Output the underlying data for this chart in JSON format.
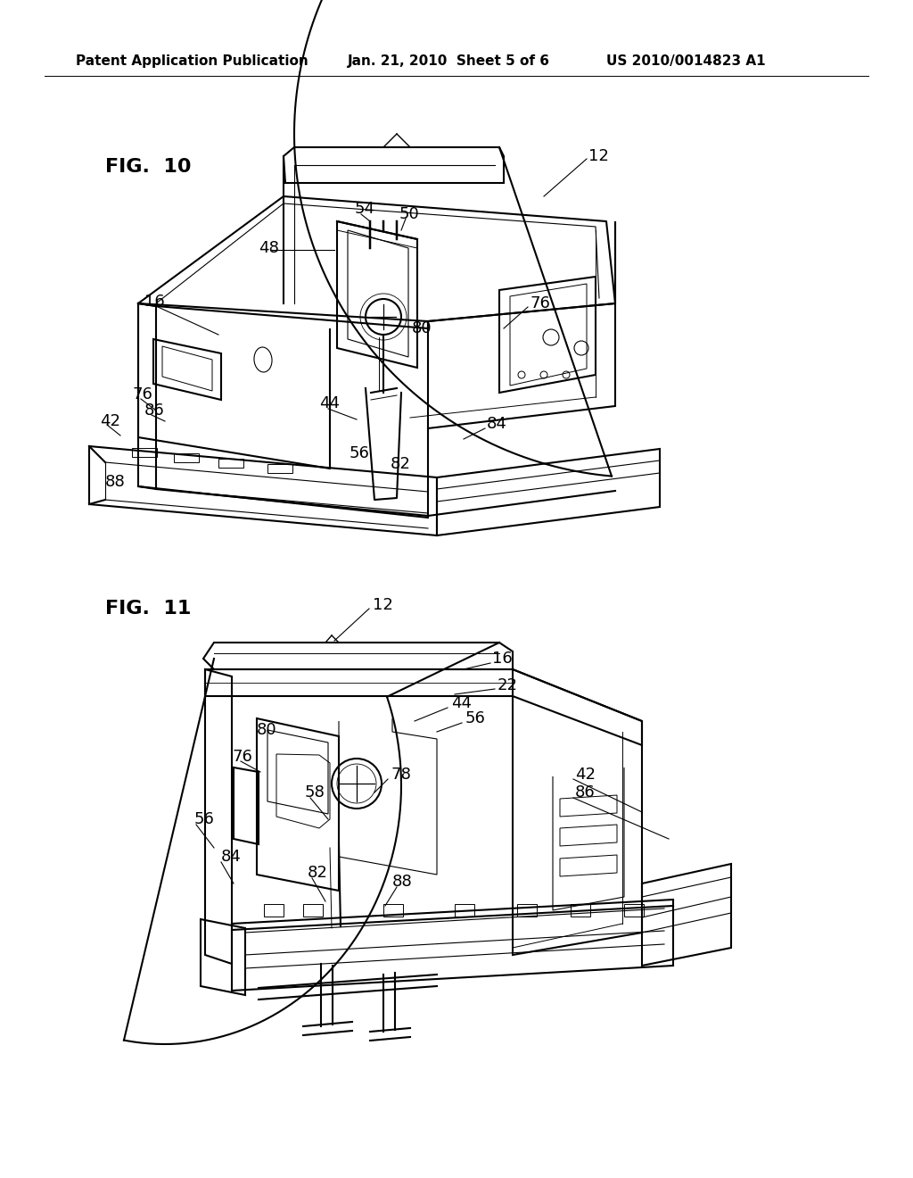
{
  "background_color": "#ffffff",
  "header_left": "Patent Application Publication",
  "header_mid": "Jan. 21, 2010  Sheet 5 of 6",
  "header_right": "US 2010/0014823 A1",
  "header_fontsize": 11,
  "fig10_label": "FIG.  10",
  "fig11_label": "FIG.  11",
  "fig_label_fontsize": 16,
  "fig_label_fontweight": "bold",
  "line_color": "#000000",
  "line_width": 1.2
}
